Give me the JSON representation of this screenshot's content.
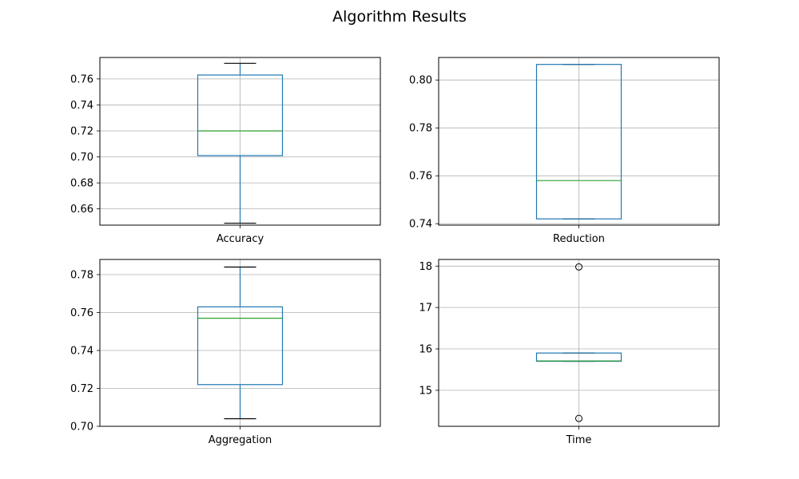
{
  "figure": {
    "title": "Algorithm Results"
  },
  "chart_data": [
    {
      "type": "box",
      "xlabel": "Accuracy",
      "ylim": [
        0.6475,
        0.7765
      ],
      "yticks": [
        0.66,
        0.68,
        0.7,
        0.72,
        0.74,
        0.76
      ],
      "ytick_labels": [
        "0.66",
        "0.68",
        "0.70",
        "0.72",
        "0.74",
        "0.76"
      ],
      "grid": true,
      "box": {
        "whisker_low": 0.649,
        "q1": 0.701,
        "median": 0.72,
        "q3": 0.763,
        "whisker_high": 0.772,
        "outliers": []
      }
    },
    {
      "type": "box",
      "xlabel": "Reduction",
      "ylim": [
        0.7394,
        0.8094
      ],
      "yticks": [
        0.74,
        0.76,
        0.78,
        0.8
      ],
      "ytick_labels": [
        "0.74",
        "0.76",
        "0.78",
        "0.80"
      ],
      "grid": true,
      "box": {
        "whisker_low": 0.742,
        "q1": 0.742,
        "median": 0.758,
        "q3": 0.8065,
        "whisker_high": 0.8065,
        "outliers": []
      }
    },
    {
      "type": "box",
      "xlabel": "Aggregation",
      "ylim": [
        0.7,
        0.788
      ],
      "yticks": [
        0.7,
        0.72,
        0.74,
        0.76,
        0.78
      ],
      "ytick_labels": [
        "0.70",
        "0.72",
        "0.74",
        "0.76",
        "0.78"
      ],
      "grid": true,
      "box": {
        "whisker_low": 0.704,
        "q1": 0.722,
        "median": 0.757,
        "q3": 0.763,
        "whisker_high": 0.784,
        "outliers": []
      }
    },
    {
      "type": "box",
      "xlabel": "Time",
      "ylim": [
        14.13,
        18.16
      ],
      "yticks": [
        15,
        16,
        17,
        18
      ],
      "ytick_labels": [
        "15",
        "16",
        "17",
        "18"
      ],
      "grid": true,
      "box": {
        "whisker_low": 15.7,
        "q1": 15.7,
        "median": 15.71,
        "q3": 15.9,
        "whisker_high": 15.9,
        "outliers": [
          17.98,
          14.32
        ]
      }
    }
  ],
  "colors": {
    "box": "#1f77b4",
    "median": "#2ca02c",
    "whisker_cap": "#000000",
    "grid": "#b0b0b0",
    "axes": "#000000"
  }
}
